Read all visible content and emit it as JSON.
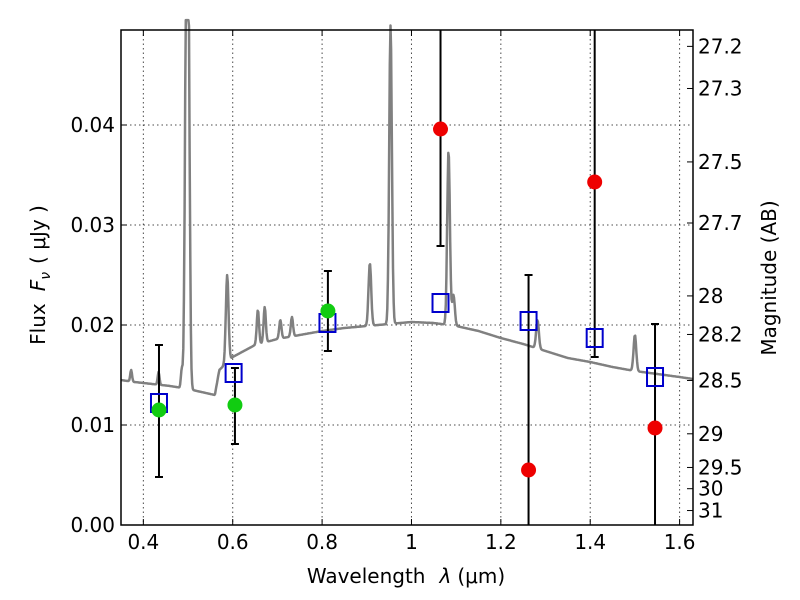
{
  "chart_data": {
    "type": "scatter",
    "xlabel_text": "Wavelength",
    "xlabel_symbol": "λ",
    "xlabel_unit": "(μm)",
    "ylabel_text": "Flux",
    "ylabel_symbol": "F",
    "ylabel_subscript": "ν",
    "ylabel_unit": "( μJy )",
    "y2label": "Magnitude (AB)",
    "xlim": [
      0.35,
      1.63
    ],
    "ylim": [
      0.0,
      0.0495
    ],
    "grid": true,
    "x_ticks": [
      {
        "value": 0.4,
        "label": "0.4"
      },
      {
        "value": 0.6,
        "label": "0.6"
      },
      {
        "value": 0.8,
        "label": "0.8"
      },
      {
        "value": 1.0,
        "label": "1"
      },
      {
        "value": 1.2,
        "label": "1.2"
      },
      {
        "value": 1.4,
        "label": "1.4"
      },
      {
        "value": 1.6,
        "label": "1.6"
      }
    ],
    "y_ticks": [
      {
        "value": 0.0,
        "label": "0.00"
      },
      {
        "value": 0.01,
        "label": "0.01"
      },
      {
        "value": 0.02,
        "label": "0.02"
      },
      {
        "value": 0.03,
        "label": "0.03"
      },
      {
        "value": 0.04,
        "label": "0.04"
      }
    ],
    "y2_ticks": [
      {
        "value": 27.2,
        "label": "27.2"
      },
      {
        "value": 27.3,
        "label": "27.3"
      },
      {
        "value": 27.5,
        "label": "27.5"
      },
      {
        "value": 27.7,
        "label": "27.7"
      },
      {
        "value": 28.0,
        "label": "28"
      },
      {
        "value": 28.2,
        "label": "28.2"
      },
      {
        "value": 28.5,
        "label": "28.5"
      },
      {
        "value": 29.0,
        "label": "29"
      },
      {
        "value": 29.5,
        "label": "29.5"
      },
      {
        "value": 30.0,
        "label": "30"
      },
      {
        "value": 31.0,
        "label": "31"
      }
    ],
    "template_spectrum": {
      "color": "#808080",
      "continuum": [
        [
          0.35,
          0.0145
        ],
        [
          0.38,
          0.0143
        ],
        [
          0.42,
          0.0141
        ],
        [
          0.46,
          0.0139
        ],
        [
          0.5,
          0.0136
        ],
        [
          0.54,
          0.0132
        ],
        [
          0.56,
          0.013
        ],
        [
          0.57,
          0.0155
        ],
        [
          0.6,
          0.0168
        ],
        [
          0.65,
          0.018
        ],
        [
          0.7,
          0.0186
        ],
        [
          0.75,
          0.019
        ],
        [
          0.8,
          0.0194
        ],
        [
          0.85,
          0.0197
        ],
        [
          0.9,
          0.0199
        ],
        [
          0.95,
          0.0201
        ],
        [
          1.0,
          0.0203
        ],
        [
          1.05,
          0.0202
        ],
        [
          1.1,
          0.0199
        ],
        [
          1.15,
          0.0194
        ],
        [
          1.2,
          0.0187
        ],
        [
          1.25,
          0.0181
        ],
        [
          1.3,
          0.0174
        ],
        [
          1.35,
          0.0167
        ],
        [
          1.4,
          0.0163
        ],
        [
          1.45,
          0.0158
        ],
        [
          1.5,
          0.0154
        ],
        [
          1.55,
          0.0151
        ],
        [
          1.6,
          0.0148
        ],
        [
          1.63,
          0.0146
        ]
      ],
      "lines": [
        {
          "x": 0.3727,
          "peak": 0.0155,
          "width": 0.002
        },
        {
          "x": 0.4341,
          "peak": 0.0153,
          "width": 0.002
        },
        {
          "x": 0.4861,
          "peak": 0.0156,
          "width": 0.002
        },
        {
          "x": 0.4959,
          "peak": 0.05,
          "width": 0.003
        },
        {
          "x": 0.5007,
          "peak": 0.05,
          "width": 0.003
        },
        {
          "x": 0.5876,
          "peak": 0.025,
          "width": 0.003
        },
        {
          "x": 0.6563,
          "peak": 0.0215,
          "width": 0.0025
        },
        {
          "x": 0.6716,
          "peak": 0.0218,
          "width": 0.0025
        },
        {
          "x": 0.7065,
          "peak": 0.0205,
          "width": 0.0025
        },
        {
          "x": 0.7325,
          "peak": 0.0208,
          "width": 0.0025
        },
        {
          "x": 0.9069,
          "peak": 0.0262,
          "width": 0.003
        },
        {
          "x": 0.9532,
          "peak": 0.05,
          "width": 0.003
        },
        {
          "x": 1.083,
          "peak": 0.0375,
          "width": 0.003
        },
        {
          "x": 1.094,
          "peak": 0.023,
          "width": 0.003
        },
        {
          "x": 1.282,
          "peak": 0.0205,
          "width": 0.003
        },
        {
          "x": 1.5,
          "peak": 0.0172,
          "width": 0.003
        },
        {
          "x": 1.5,
          "peak": 0.0172,
          "width": 0.003
        }
      ]
    },
    "series": [
      {
        "kind": "model",
        "marker": "open-square",
        "color": "#0000cc",
        "points": [
          {
            "x": 0.435,
            "y": 0.0122
          },
          {
            "x": 0.602,
            "y": 0.0152
          },
          {
            "x": 0.812,
            "y": 0.0202
          },
          {
            "x": 1.065,
            "y": 0.0222
          },
          {
            "x": 1.262,
            "y": 0.0204
          },
          {
            "x": 1.41,
            "y": 0.0187
          },
          {
            "x": 1.545,
            "y": 0.0148
          }
        ]
      },
      {
        "kind": "detection",
        "marker": "filled-circle",
        "color": "#11cc11",
        "points": [
          {
            "x": 0.435,
            "y": 0.0115,
            "yerr_lo": 0.0048,
            "yerr_hi": 0.018
          },
          {
            "x": 0.605,
            "y": 0.012,
            "yerr_lo": 0.0081,
            "yerr_hi": 0.0157
          },
          {
            "x": 0.813,
            "y": 0.0214,
            "yerr_lo": 0.0174,
            "yerr_hi": 0.0254
          }
        ]
      },
      {
        "kind": "upper-limit",
        "marker": "filled-circle",
        "color": "#ee0000",
        "points": [
          {
            "x": 1.065,
            "y": 0.0396,
            "yerr_lo": 0.0279,
            "yerr_hi": 0.0495
          },
          {
            "x": 1.262,
            "y": 0.0055,
            "yerr_lo": 0.0,
            "yerr_hi": 0.025
          },
          {
            "x": 1.41,
            "y": 0.0343,
            "yerr_lo": 0.0168,
            "yerr_hi": 0.0495
          },
          {
            "x": 1.545,
            "y": 0.0097,
            "yerr_lo": 0.0,
            "yerr_hi": 0.0201
          }
        ]
      }
    ]
  }
}
